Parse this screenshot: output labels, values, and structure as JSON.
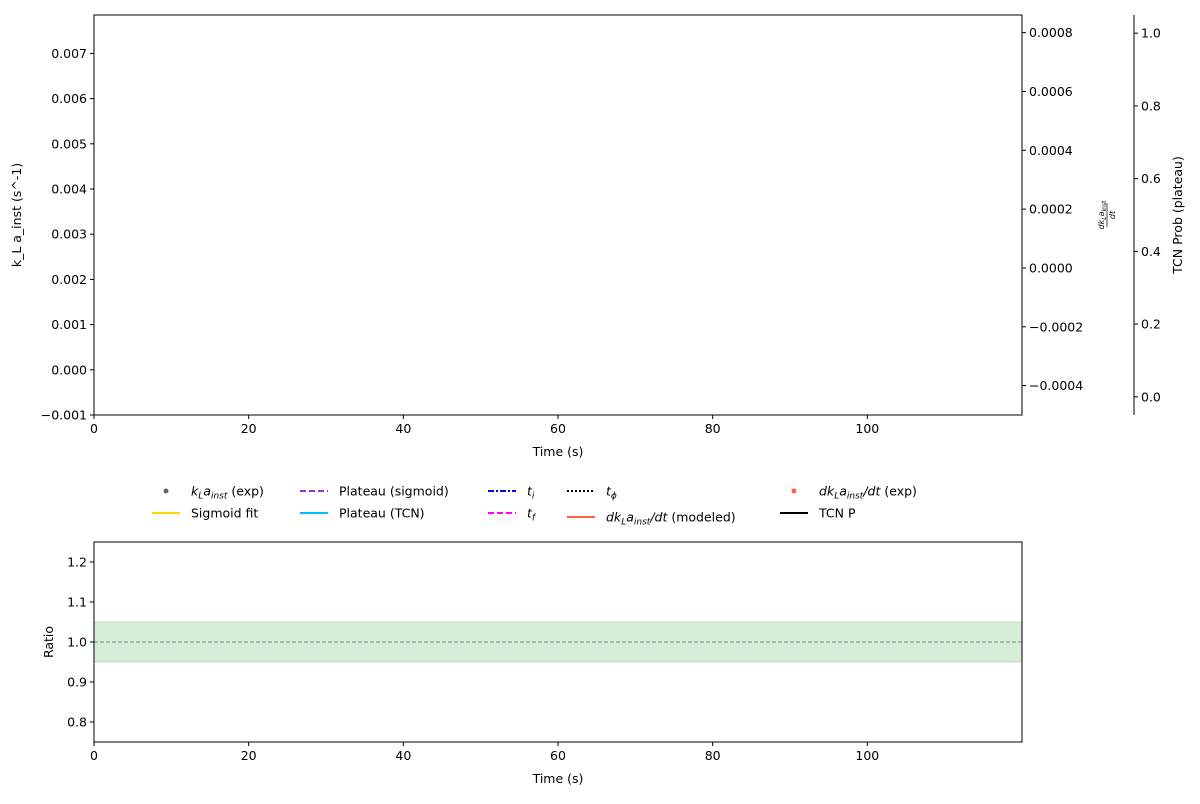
{
  "chart_data": [
    {
      "type": "line",
      "title": "",
      "xlabel": "Time (s)",
      "xlim": [
        0,
        120
      ],
      "xticks": [
        "0",
        "20",
        "40",
        "60",
        "80",
        "100"
      ],
      "ylabel": "k_L a_inst (s^-1)",
      "ylabel_parts": {
        "k": "k",
        "sub_L": "L",
        "a": "a",
        "sub": "inst",
        "unit_open": " (s",
        "sup": "−1",
        "unit_close": ")"
      },
      "ylim": [
        -0.001,
        0.00785
      ],
      "yticks": [
        "−0.001",
        "0.000",
        "0.001",
        "0.002",
        "0.003",
        "0.004",
        "0.005",
        "0.006",
        "0.007"
      ],
      "secondary_y": {
        "label": "dk_L a_inst / dt",
        "label_parts": {
          "num": "dk",
          "sub_L": "L",
          "a": "a",
          "sub": "inst",
          "den": "dt"
        },
        "ylim": [
          -0.0005,
          0.00086
        ],
        "yticks": [
          "−0.0004",
          "−0.0002",
          "0.0000",
          "0.0002",
          "0.0004",
          "0.0006",
          "0.0008"
        ]
      },
      "tertiary_y": {
        "label": "TCN Prob (plateau)",
        "ylim": [
          -0.05,
          1.05
        ],
        "yticks": [
          "0.0",
          "0.2",
          "0.4",
          "0.6",
          "0.8",
          "1.0"
        ]
      },
      "series": [],
      "legend": {
        "placement": "below",
        "entries": [
          {
            "label": "kLainst (exp)",
            "parts": [
              "k",
              "L",
              "a",
              "inst",
              " (exp)"
            ],
            "color": "#666666",
            "style": "dot"
          },
          {
            "label": "Sigmoid fit",
            "color": "#FFD700",
            "style": "solid"
          },
          {
            "label": "Plateau (sigmoid)",
            "color": "#9B30D9",
            "style": "dashed"
          },
          {
            "label": "Plateau (TCN)",
            "color": "#00BFFF",
            "style": "solid"
          },
          {
            "label": "ti",
            "parts": [
              "t",
              "i"
            ],
            "color": "#0000FF",
            "style": "dashdot"
          },
          {
            "label": "tf",
            "parts": [
              "t",
              "f"
            ],
            "color": "#FF00FF",
            "style": "dashed"
          },
          {
            "label": "tφ",
            "parts": [
              "t",
              "ϕ"
            ],
            "color": "#000000",
            "style": "dotted"
          },
          {
            "label": "dkLainst/dt (modeled)",
            "parts": [
              "dk",
              "L",
              "a",
              "inst",
              "/dt",
              " (modeled)"
            ],
            "color": "#FF6347",
            "style": "solid"
          },
          {
            "label": "dkLainst/dt (exp)",
            "parts": [
              "dk",
              "L",
              "a",
              "inst",
              "/dt",
              " (exp)"
            ],
            "color": "#FF6347",
            "style": "dot"
          },
          {
            "label": "TCN P",
            "color": "#000000",
            "style": "solid"
          }
        ]
      }
    },
    {
      "type": "line",
      "xlabel": "Time (s)",
      "ylabel": "Ratio",
      "xlim": [
        0,
        120
      ],
      "ylim": [
        0.75,
        1.25
      ],
      "xticks": [
        "0",
        "20",
        "40",
        "60",
        "80",
        "100"
      ],
      "yticks": [
        "0.8",
        "0.9",
        "1.0",
        "1.1",
        "1.2"
      ],
      "reference_line": 1.0,
      "band": [
        0.95,
        1.05
      ],
      "band_color": "#2CA02C"
    }
  ]
}
